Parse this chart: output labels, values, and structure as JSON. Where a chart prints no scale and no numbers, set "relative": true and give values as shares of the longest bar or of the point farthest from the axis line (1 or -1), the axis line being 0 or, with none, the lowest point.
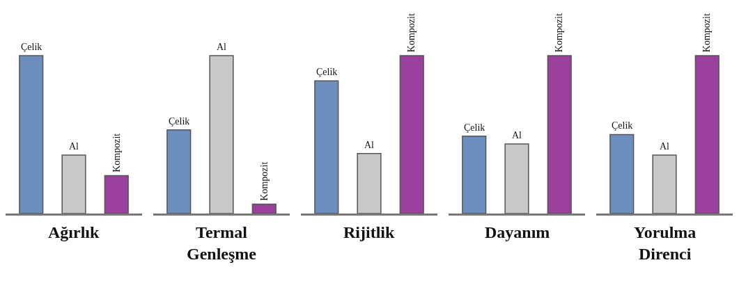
{
  "chart_data": [
    {
      "type": "bar",
      "relative": true,
      "xlabel": "Ağırlık",
      "categories": [
        "Çelik",
        "Al",
        "Kompozit"
      ],
      "values": [
        1,
        0.37,
        0.24
      ],
      "colors": [
        "#6c8ebf",
        "#c8c8c8",
        "#9a3f9c"
      ]
    },
    {
      "type": "bar",
      "relative": true,
      "xlabel": "Termal\nGenleşme",
      "categories": [
        "Çelik",
        "Al",
        "Kompozit"
      ],
      "values": [
        0.53,
        1,
        0.06
      ],
      "colors": [
        "#6c8ebf",
        "#c8c8c8",
        "#9a3f9c"
      ]
    },
    {
      "type": "bar",
      "relative": true,
      "xlabel": "Rijitlik",
      "categories": [
        "Çelik",
        "Al",
        "Kompozit"
      ],
      "values": [
        0.84,
        0.38,
        1
      ],
      "colors": [
        "#6c8ebf",
        "#c8c8c8",
        "#9a3f9c"
      ]
    },
    {
      "type": "bar",
      "relative": true,
      "xlabel": "Dayanım",
      "categories": [
        "Çelik",
        "Al",
        "Kompozit"
      ],
      "values": [
        0.49,
        0.44,
        1
      ],
      "colors": [
        "#6c8ebf",
        "#c8c8c8",
        "#9a3f9c"
      ]
    },
    {
      "type": "bar",
      "relative": true,
      "xlabel": "Yorulma\nDirenci",
      "categories": [
        "Çelik",
        "Al",
        "Kompozit"
      ],
      "values": [
        0.5,
        0.37,
        1
      ],
      "colors": [
        "#6c8ebf",
        "#c8c8c8",
        "#9a3f9c"
      ]
    }
  ]
}
